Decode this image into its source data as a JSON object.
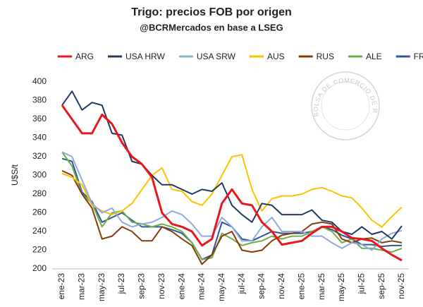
{
  "chart_data": {
    "type": "line",
    "title": "Trigo: precios FOB por origen",
    "subtitle": "@BCRMercados en base a LSEG",
    "y_label": "U$S/t",
    "watermark": "BOLSA DE COMERCIO DE ROSARIO",
    "categories": [
      "ene-23",
      null,
      "mar-23",
      null,
      "may-23",
      null,
      "jul-23",
      null,
      "sep-23",
      null,
      "nov-23",
      null,
      "ene-24",
      null,
      "mar-24",
      null,
      "may-24",
      null,
      "jul-24",
      null,
      "sep-24",
      null,
      "nov-24",
      null,
      "ene-25",
      null,
      "mar-25",
      null,
      "may-25",
      null,
      "jul-25",
      null,
      "sep-25",
      null,
      "nov-25"
    ],
    "ylim": [
      200,
      400
    ],
    "yticks": [
      200,
      220,
      240,
      260,
      280,
      300,
      320,
      340,
      360,
      380,
      400
    ],
    "grid": false,
    "legend": "top",
    "series": [
      {
        "name": "ARG",
        "color": "#e8171b",
        "values": [
          375,
          360,
          345,
          345,
          365,
          355,
          335,
          320,
          312,
          298,
          260,
          248,
          245,
          240,
          225,
          232,
          270,
          285,
          270,
          268,
          250,
          240,
          226,
          228,
          230,
          238,
          245,
          245,
          240,
          233,
          232,
          230,
          222,
          215,
          209
        ]
      },
      {
        "name": "USA HRW",
        "color": "#1f3864",
        "values": [
          375,
          390,
          370,
          378,
          375,
          345,
          343,
          315,
          312,
          300,
          290,
          290,
          285,
          280,
          285,
          283,
          292,
          268,
          258,
          250,
          270,
          268,
          258,
          258,
          258,
          263,
          252,
          250,
          240,
          237,
          245,
          237,
          240,
          232,
          246
        ]
      },
      {
        "name": "USA SRW",
        "color": "#8faadc",
        "values": [
          325,
          320,
          295,
          270,
          260,
          265,
          250,
          245,
          248,
          250,
          255,
          262,
          258,
          248,
          235,
          235,
          255,
          245,
          230,
          230,
          245,
          255,
          240,
          240,
          240,
          235,
          235,
          228,
          222,
          228,
          226,
          220,
          232,
          238,
          241
        ]
      },
      {
        "name": "AUS",
        "color": "#ffc000",
        "values": [
          302,
          298,
          290,
          268,
          262,
          258,
          262,
          270,
          285,
          300,
          308,
          285,
          283,
          272,
          268,
          280,
          300,
          320,
          322,
          285,
          262,
          275,
          278,
          278,
          280,
          285,
          287,
          283,
          278,
          276,
          265,
          252,
          245,
          256,
          266
        ]
      },
      {
        "name": "RUS",
        "color": "#843c0c",
        "values": [
          305,
          300,
          280,
          265,
          232,
          235,
          245,
          240,
          230,
          230,
          245,
          240,
          232,
          225,
          205,
          215,
          235,
          240,
          220,
          218,
          220,
          230,
          236,
          238,
          240,
          248,
          250,
          248,
          232,
          228,
          232,
          233,
          228,
          230,
          228
        ]
      },
      {
        "name": "ALE",
        "color": "#70ad47",
        "values": [
          325,
          310,
          280,
          270,
          245,
          260,
          262,
          250,
          248,
          245,
          248,
          245,
          240,
          228,
          210,
          212,
          238,
          232,
          225,
          228,
          230,
          235,
          232,
          235,
          235,
          240,
          245,
          240,
          228,
          232,
          222,
          222,
          220,
          218,
          222
        ]
      },
      {
        "name": "FR",
        "color": "#2f5597",
        "values": [
          318,
          315,
          282,
          272,
          250,
          255,
          260,
          252,
          245,
          245,
          245,
          242,
          238,
          228,
          210,
          215,
          250,
          245,
          232,
          230,
          235,
          240,
          238,
          238,
          238,
          240,
          245,
          242,
          236,
          232,
          226,
          226,
          224,
          225,
          225
        ]
      }
    ]
  }
}
